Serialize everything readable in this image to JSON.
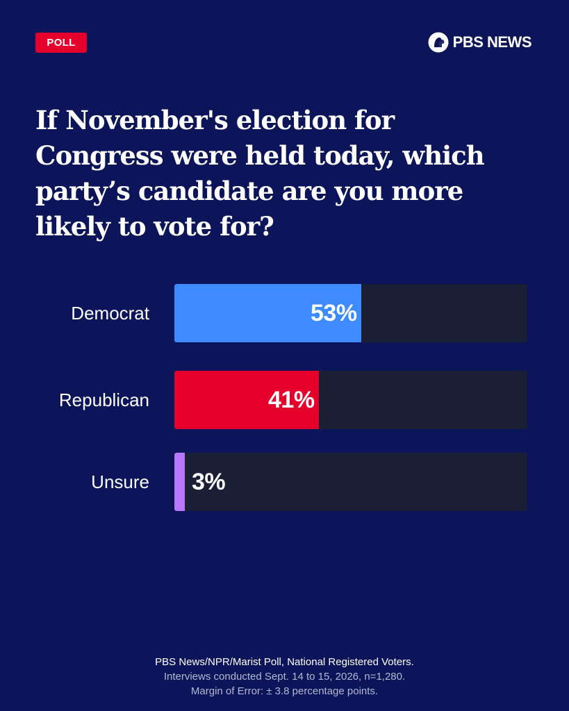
{
  "badge": "POLL",
  "brand": {
    "name": "PBS NEWS",
    "icon": "pbs-head-logo"
  },
  "headline": "If November's election for Congress were held today, which party’s candidate are you more likely to vote for?",
  "chart_data": {
    "type": "bar",
    "orientation": "horizontal",
    "categories": [
      "Democrat",
      "Republican",
      "Unsure"
    ],
    "values": [
      53,
      41,
      3
    ],
    "value_labels": [
      "53%",
      "41%",
      "3%"
    ],
    "colors": [
      "#3d8bff",
      "#e4002b",
      "#b777ff"
    ],
    "track_color": "#1b1f36",
    "xlim": [
      0,
      100
    ],
    "grid": false,
    "legend": "none"
  },
  "footer": {
    "source": "PBS News/NPR/Marist Poll, National Registered Voters.",
    "interviews": "Interviews conducted Sept. 14 to 15, 2026, n=1,280.",
    "margin": "Margin of Error: ± 3.8 percentage points."
  }
}
